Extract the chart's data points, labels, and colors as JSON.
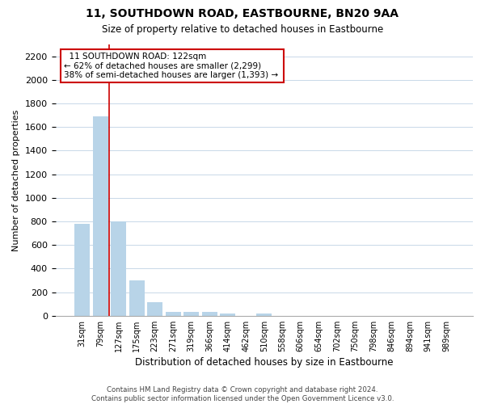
{
  "title": "11, SOUTHDOWN ROAD, EASTBOURNE, BN20 9AA",
  "subtitle": "Size of property relative to detached houses in Eastbourne",
  "xlabel": "Distribution of detached houses by size in Eastbourne",
  "ylabel": "Number of detached properties",
  "bar_labels": [
    "31sqm",
    "79sqm",
    "127sqm",
    "175sqm",
    "223sqm",
    "271sqm",
    "319sqm",
    "366sqm",
    "414sqm",
    "462sqm",
    "510sqm",
    "558sqm",
    "606sqm",
    "654sqm",
    "702sqm",
    "750sqm",
    "798sqm",
    "846sqm",
    "894sqm",
    "941sqm",
    "989sqm"
  ],
  "bar_values": [
    780,
    1690,
    800,
    300,
    115,
    35,
    35,
    35,
    20,
    0,
    20,
    0,
    0,
    0,
    0,
    0,
    0,
    0,
    0,
    0,
    0
  ],
  "bar_color": "#b8d4e8",
  "vline_x": 1.5,
  "annotation_title": "11 SOUTHDOWN ROAD: 122sqm",
  "annotation_line1": "← 62% of detached houses are smaller (2,299)",
  "annotation_line2": "38% of semi-detached houses are larger (1,393) →",
  "annotation_box_color": "#ffffff",
  "annotation_box_edge": "#cc0000",
  "vline_color": "#cc0000",
  "ylim": [
    0,
    2300
  ],
  "yticks": [
    0,
    200,
    400,
    600,
    800,
    1000,
    1200,
    1400,
    1600,
    1800,
    2000,
    2200
  ],
  "footer1": "Contains HM Land Registry data © Crown copyright and database right 2024.",
  "footer2": "Contains public sector information licensed under the Open Government Licence v3.0.",
  "background_color": "#ffffff",
  "grid_color": "#c8d8e8"
}
